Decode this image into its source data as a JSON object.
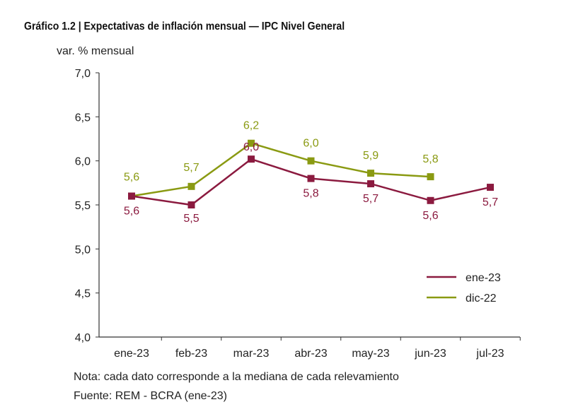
{
  "chart_data": {
    "type": "line",
    "title": "Gráfico 1.2 | Expectativas de inflación mensual — IPC Nivel General",
    "ylabel": "var. % mensual",
    "xlabel": "",
    "categories": [
      "ene-23",
      "feb-23",
      "mar-23",
      "abr-23",
      "may-23",
      "jun-23",
      "jul-23"
    ],
    "ylim": [
      4.0,
      7.0
    ],
    "yticks": [
      "4,0",
      "4,5",
      "5,0",
      "5,5",
      "6,0",
      "6,5",
      "7,0"
    ],
    "grid": false,
    "legend": "bottom-right",
    "series": [
      {
        "name": "ene-23",
        "color": "#8b1a3f",
        "values": [
          5.6,
          5.5,
          6.02,
          5.8,
          5.74,
          5.55,
          5.7
        ],
        "labels": [
          "5,6",
          "5,5",
          "6,0",
          "5,8",
          "5,7",
          "5,6",
          "5,7"
        ]
      },
      {
        "name": "dic-22",
        "color": "#8a9a12",
        "values": [
          5.6,
          5.71,
          6.2,
          6.0,
          5.86,
          5.82,
          null
        ],
        "labels": [
          "5,6",
          "5,7",
          "6,2",
          "6,0",
          "5,9",
          "5,8",
          null
        ]
      }
    ],
    "notes": [
      "Nota: cada dato corresponde a la mediana de cada relevamiento",
      "Fuente: REM - BCRA (ene-23)"
    ]
  }
}
